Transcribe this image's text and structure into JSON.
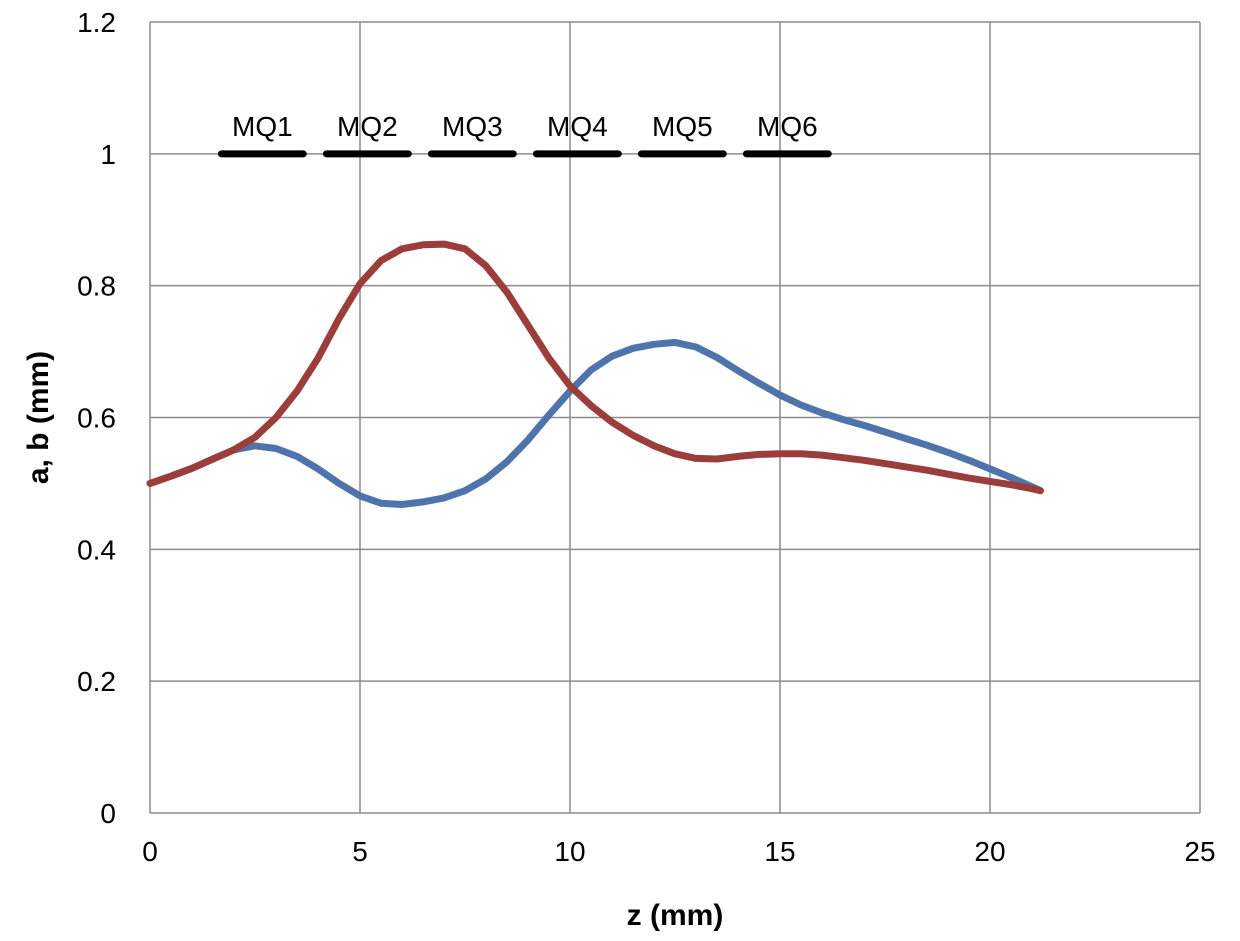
{
  "chart_data": {
    "type": "line",
    "xlabel": "z (mm)",
    "ylabel": "a, b (mm)",
    "xlim": [
      0,
      25
    ],
    "ylim": [
      0,
      1.2
    ],
    "x_ticks": [
      0,
      5,
      10,
      15,
      20,
      25
    ],
    "y_ticks": [
      0,
      0.2,
      0.4,
      0.6,
      0.8,
      1,
      1.2
    ],
    "x_tick_labels": [
      "0",
      "5",
      "10",
      "15",
      "20",
      "25"
    ],
    "y_tick_labels": [
      "0",
      "0.2",
      "0.4",
      "0.6",
      "0.8",
      "1",
      "1.2"
    ],
    "grid": true,
    "series": [
      {
        "color": "#4f74ab",
        "x": [
          0,
          0.5,
          1,
          1.5,
          2,
          2.5,
          3,
          3.5,
          4,
          4.5,
          5,
          5.5,
          6,
          6.5,
          7,
          7.5,
          8,
          8.5,
          9,
          9.5,
          10,
          10.5,
          11,
          11.5,
          12,
          12.5,
          13,
          13.5,
          14,
          14.5,
          15,
          15.5,
          16,
          16.5,
          17,
          17.5,
          18,
          18.5,
          19,
          19.5,
          20,
          20.5,
          21,
          21.2
        ],
        "y": [
          0.5,
          0.511,
          0.523,
          0.537,
          0.551,
          0.557,
          0.553,
          0.541,
          0.522,
          0.5,
          0.481,
          0.47,
          0.468,
          0.472,
          0.478,
          0.489,
          0.507,
          0.533,
          0.566,
          0.604,
          0.64,
          0.672,
          0.693,
          0.705,
          0.711,
          0.714,
          0.707,
          0.691,
          0.671,
          0.652,
          0.634,
          0.619,
          0.607,
          0.597,
          0.588,
          0.578,
          0.568,
          0.558,
          0.547,
          0.535,
          0.522,
          0.509,
          0.495,
          0.489
        ]
      },
      {
        "color": "#9b3e3b",
        "x": [
          0,
          0.5,
          1,
          1.5,
          2,
          2.5,
          3,
          3.5,
          4,
          4.5,
          5,
          5.5,
          6,
          6.5,
          7,
          7.5,
          8,
          8.5,
          9,
          9.5,
          10,
          10.5,
          11,
          11.5,
          12,
          12.5,
          13,
          13.5,
          14,
          14.5,
          15,
          15.5,
          16,
          16.5,
          17,
          17.5,
          18,
          18.5,
          19,
          19.5,
          20,
          20.5,
          21,
          21.2
        ],
        "y": [
          0.5,
          0.511,
          0.523,
          0.537,
          0.551,
          0.57,
          0.6,
          0.64,
          0.69,
          0.75,
          0.803,
          0.838,
          0.856,
          0.862,
          0.863,
          0.856,
          0.83,
          0.79,
          0.74,
          0.69,
          0.648,
          0.618,
          0.593,
          0.573,
          0.557,
          0.545,
          0.538,
          0.537,
          0.541,
          0.544,
          0.545,
          0.545,
          0.543,
          0.539,
          0.535,
          0.53,
          0.525,
          0.52,
          0.514,
          0.508,
          0.503,
          0.498,
          0.492,
          0.489
        ]
      }
    ],
    "magnets": {
      "y": 1,
      "color": "#000000",
      "items": [
        {
          "label": "MQ1",
          "start": 1.7,
          "end": 3.65
        },
        {
          "label": "MQ2",
          "start": 4.2,
          "end": 6.15
        },
        {
          "label": "MQ3",
          "start": 6.7,
          "end": 8.65
        },
        {
          "label": "MQ4",
          "start": 9.2,
          "end": 11.15
        },
        {
          "label": "MQ5",
          "start": 11.7,
          "end": 13.65
        },
        {
          "label": "MQ6",
          "start": 14.2,
          "end": 16.15
        }
      ]
    }
  }
}
